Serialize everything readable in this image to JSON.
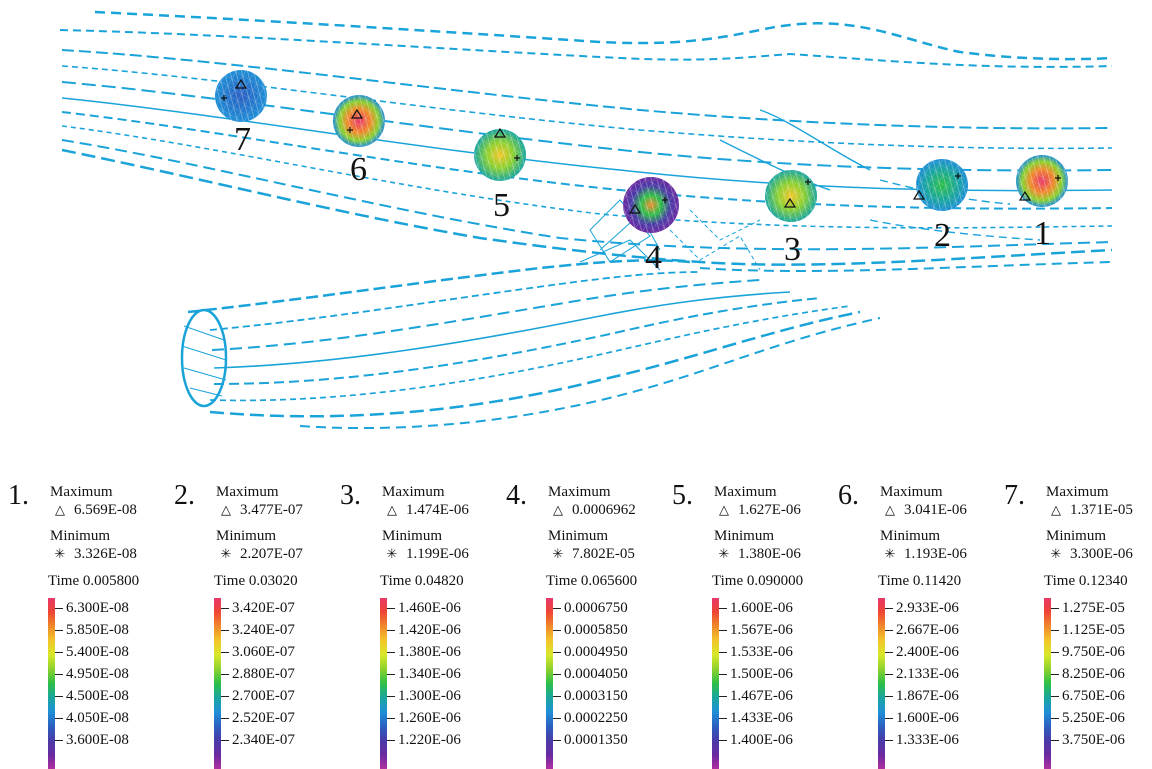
{
  "labels": [
    "1",
    "2",
    "3",
    "4",
    "5",
    "6",
    "7"
  ],
  "colors": {
    "streamline": "#1aa3d9",
    "colormap": [
      "#e8386b",
      "#ee4533",
      "#f08a2a",
      "#f2c62a",
      "#d8e82a",
      "#8cd12e",
      "#2dbf48",
      "#1aa6a0",
      "#1f8fd6",
      "#2b5fc1",
      "#4a3ba8",
      "#6a2aa0",
      "#b030a0"
    ]
  },
  "panels": [
    {
      "number": "1.",
      "max_label": "Maximum",
      "max": "6.569E-08",
      "min_label": "Minimum",
      "min": "3.326E-08",
      "time": "Time 0.005800",
      "ticks": [
        "6.300E-08",
        "5.850E-08",
        "5.400E-08",
        "4.950E-08",
        "4.500E-08",
        "4.050E-08",
        "3.600E-08"
      ]
    },
    {
      "number": "2.",
      "max_label": "Maximum",
      "max": "3.477E-07",
      "min_label": "Minimum",
      "min": "2.207E-07",
      "time": "Time 0.03020",
      "ticks": [
        "3.420E-07",
        "3.240E-07",
        "3.060E-07",
        "2.880E-07",
        "2.700E-07",
        "2.520E-07",
        "2.340E-07"
      ]
    },
    {
      "number": "3.",
      "max_label": "Maximum",
      "max": "1.474E-06",
      "min_label": "Minimum",
      "min": "1.199E-06",
      "time": "Time 0.04820",
      "ticks": [
        "1.460E-06",
        "1.420E-06",
        "1.380E-06",
        "1.340E-06",
        "1.300E-06",
        "1.260E-06",
        "1.220E-06"
      ]
    },
    {
      "number": "4.",
      "max_label": "Maximum",
      "max": "0.0006962",
      "min_label": "Minimum",
      "min": "7.802E-05",
      "time": "Time 0.065600",
      "ticks": [
        "0.0006750",
        "0.0005850",
        "0.0004950",
        "0.0004050",
        "0.0003150",
        "0.0002250",
        "0.0001350"
      ]
    },
    {
      "number": "5.",
      "max_label": "Maximum",
      "max": "1.627E-06",
      "min_label": "Minimum",
      "min": "1.380E-06",
      "time": "Time 0.090000",
      "ticks": [
        "1.600E-06",
        "1.567E-06",
        "1.533E-06",
        "1.500E-06",
        "1.467E-06",
        "1.433E-06",
        "1.400E-06"
      ]
    },
    {
      "number": "6.",
      "max_label": "Maximum",
      "max": "3.041E-06",
      "min_label": "Minimum",
      "min": "1.193E-06",
      "time": "Time 0.11420",
      "ticks": [
        "2.933E-06",
        "2.667E-06",
        "2.400E-06",
        "2.133E-06",
        "1.867E-06",
        "1.600E-06",
        "1.333E-06"
      ]
    },
    {
      "number": "7.",
      "max_label": "Maximum",
      "max": "1.371E-05",
      "min_label": "Minimum",
      "min": "3.300E-06",
      "time": "Time 0.12340",
      "ticks": [
        "1.275E-05",
        "1.125E-05",
        "9.750E-06",
        "8.250E-06",
        "6.750E-06",
        "5.250E-06",
        "3.750E-06"
      ]
    }
  ]
}
